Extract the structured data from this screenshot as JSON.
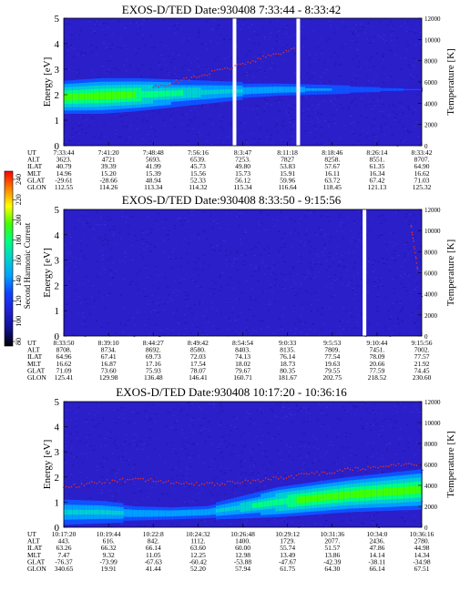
{
  "colorbar": {
    "label": "Second Harmonic Current",
    "ticks": [
      "240",
      "220",
      "200",
      "180",
      "160",
      "140",
      "120",
      "100",
      "80"
    ],
    "colors": [
      "#ff0000",
      "#ff8000",
      "#ffff00",
      "#40ff00",
      "#00ff80",
      "#00d0d0",
      "#00a0ff",
      "#1040ff",
      "#2020d0",
      "#101090",
      "#000000"
    ]
  },
  "panels": [
    {
      "title": "EXOS-D/TED   Date:930408   7:33:44 - 8:33:42",
      "ylabel": "Energy [eV]",
      "y2label": "Temperature [K]",
      "ylim": [
        0,
        5
      ],
      "y2lim": [
        0,
        12000
      ],
      "yticks": [
        "0",
        "1",
        "2",
        "3",
        "4",
        "5"
      ],
      "y2ticks": [
        "0",
        "2000",
        "4000",
        "6000",
        "8000",
        "10000",
        "12000"
      ],
      "rows": [
        {
          "label": "UT",
          "values": [
            "7:33:44",
            "7:41:20",
            "7:48:48",
            "7:56:16",
            "8:3:47",
            "8:11:18",
            "8:18:46",
            "8:26:14",
            "8:33:42"
          ]
        },
        {
          "label": "ALT",
          "values": [
            "3623.",
            "4721",
            "5693.",
            "6539.",
            "7253.",
            "7827",
            "8258.",
            "8551.",
            "8707."
          ]
        },
        {
          "label": "ILAT",
          "values": [
            "40.79",
            "39.39",
            "41.99",
            "45.73",
            "49.80",
            "53.83",
            "57.67",
            "61.35",
            "64.90"
          ]
        },
        {
          "label": "MLT",
          "values": [
            "14.96",
            "15.20",
            "15.39",
            "15.56",
            "15.73",
            "15.91",
            "16.11",
            "16.34",
            "16.62"
          ]
        },
        {
          "label": "GLAT",
          "values": [
            "-29.61",
            "-28.66",
            "48.94",
            "52.33",
            "56.12",
            "59.96",
            "63.72",
            "67.42",
            "71.03"
          ]
        },
        {
          "label": "GLON",
          "values": [
            "112.55",
            "114.26",
            "113.34",
            "114.32",
            "115.34",
            "116.64",
            "118.45",
            "121.13",
            "125.32"
          ]
        }
      ],
      "chart_data": {
        "type": "heatmap",
        "title": "EXOS-D/TED   Date:930408   7:33:44 - 8:33:42",
        "ylabel": "Energy [eV]",
        "y2label": "Temperature [K]",
        "x": [
          "7:33:44",
          "7:41:20",
          "7:48:48",
          "7:56:16",
          "8:3:47",
          "8:11:18",
          "8:18:46",
          "8:26:14",
          "8:33:42"
        ],
        "ylim": [
          0,
          5
        ],
        "y2lim": [
          0,
          12000
        ],
        "intensity_band": [
          {
            "x": 0.0,
            "center": 1.9,
            "width": 0.65,
            "level": 0.95
          },
          {
            "x": 0.1,
            "center": 1.95,
            "width": 0.7,
            "level": 1.0
          },
          {
            "x": 0.2,
            "center": 2.0,
            "width": 0.65,
            "level": 0.9
          },
          {
            "x": 0.3,
            "center": 2.05,
            "width": 0.55,
            "level": 0.75
          },
          {
            "x": 0.4,
            "center": 2.1,
            "width": 0.45,
            "level": 0.6
          },
          {
            "x": 0.5,
            "center": 2.15,
            "width": 0.35,
            "level": 0.5
          },
          {
            "x": 0.6,
            "center": 2.2,
            "width": 0.3,
            "level": 0.45
          },
          {
            "x": 0.7,
            "center": 2.2,
            "width": 0.25,
            "level": 0.35
          },
          {
            "x": 0.8,
            "center": 2.2,
            "width": 0.2,
            "level": 0.25
          },
          {
            "x": 0.9,
            "center": 2.2,
            "width": 0.15,
            "level": 0.15
          },
          {
            "x": 1.0,
            "center": 2.2,
            "width": 0.1,
            "level": 0.1
          }
        ],
        "temperature": [
          {
            "x": 0.25,
            "T": 5500
          },
          {
            "x": 0.35,
            "T": 6300
          },
          {
            "x": 0.45,
            "T": 7200
          },
          {
            "x": 0.55,
            "T": 8200
          },
          {
            "x": 0.65,
            "T": 9200
          }
        ],
        "gaps": [
          0.477,
          0.655
        ]
      }
    },
    {
      "title": "EXOS-D/TED   Date:930408   8:33:50 - 9:15:56",
      "ylabel": "Energy [eV]",
      "y2label": "Temperature [K]",
      "ylim": [
        0,
        5
      ],
      "y2lim": [
        0,
        12000
      ],
      "yticks": [
        "0",
        "1",
        "2",
        "3",
        "4",
        "5"
      ],
      "y2ticks": [
        "0",
        "2000",
        "4000",
        "6000",
        "8000",
        "10000",
        "12000"
      ],
      "rows": [
        {
          "label": "UT",
          "values": [
            "8:33:50",
            "8:39:10",
            "8:44:27",
            "8:49:42",
            "8:54:54",
            "9:0:33",
            "9:5:53",
            "9:10:44",
            "9:15:56"
          ]
        },
        {
          "label": "ALT",
          "values": [
            "8708.",
            "8734.",
            "8692.",
            "8580.",
            "8403.",
            "8135.",
            "7809.",
            "7451.",
            "7002."
          ]
        },
        {
          "label": "ILAT",
          "values": [
            "64.96",
            "67.41",
            "69.73",
            "72.03",
            "74.13",
            "76.14",
            "77.54",
            "78.09",
            "77.57"
          ]
        },
        {
          "label": "MLT",
          "values": [
            "16.62",
            "16.87",
            "17.16",
            "17.54",
            "18.02",
            "18.73",
            "19.63",
            "20.66",
            "21.92"
          ]
        },
        {
          "label": "GLAT",
          "values": [
            "71.09",
            "73.60",
            "75.93",
            "78.07",
            "79.67",
            "80.35",
            "79.55",
            "77.59",
            "74.45"
          ]
        },
        {
          "label": "GLON",
          "values": [
            "125.41",
            "129.98",
            "136.48",
            "146.41",
            "160.71",
            "181.67",
            "202.75",
            "218.52",
            "230.60"
          ]
        }
      ],
      "chart_data": {
        "type": "heatmap",
        "title": "EXOS-D/TED   Date:930408   8:33:50 - 9:15:56",
        "ylabel": "Energy [eV]",
        "y2label": "Temperature [K]",
        "x": [
          "8:33:50",
          "8:39:10",
          "8:44:27",
          "8:49:42",
          "8:54:54",
          "9:0:33",
          "9:5:53",
          "9:10:44",
          "9:15:56"
        ],
        "ylim": [
          0,
          5
        ],
        "y2lim": [
          0,
          12000
        ],
        "intensity_band": [],
        "temperature": [
          {
            "x": 0.97,
            "T": 10500
          },
          {
            "x": 0.99,
            "T": 6000
          }
        ],
        "gaps": [
          0.84
        ]
      }
    },
    {
      "title": "EXOS-D/TED   Date:930408   10:17:20 - 10:36:16",
      "ylabel": "Energy [eV]",
      "y2label": "Temperature [K]",
      "ylim": [
        0,
        5
      ],
      "y2lim": [
        0,
        12000
      ],
      "yticks": [
        "0",
        "1",
        "2",
        "3",
        "4",
        "5"
      ],
      "y2ticks": [
        "0",
        "2000",
        "4000",
        "6000",
        "8000",
        "10000",
        "12000"
      ],
      "rows": [
        {
          "label": "UT",
          "values": [
            "10:17:20",
            "10:19:44",
            "10:22:8",
            "10:24:32",
            "10:26:48",
            "10:29:12",
            "10:31:36",
            "10:34:0",
            "10:36:16"
          ]
        },
        {
          "label": "ALT",
          "values": [
            "443.",
            "616.",
            "842.",
            "1112.",
            "1400.",
            "1729.",
            "2077.",
            "2436.",
            "2780."
          ]
        },
        {
          "label": "ILAT",
          "values": [
            "63.26",
            "66.32",
            "66.14",
            "63.60",
            "60.00",
            "55.74",
            "51.57",
            "47.86",
            "44.98"
          ]
        },
        {
          "label": "MLT",
          "values": [
            "7.47",
            "9.32",
            "11.05",
            "12.25",
            "12.98",
            "13.49",
            "13.86",
            "14.14",
            "14.34"
          ]
        },
        {
          "label": "GLAT",
          "values": [
            "-76.37",
            "-73.99",
            "-67.63",
            "-60.42",
            "-53.88",
            "-47.67",
            "-42.39",
            "-38.11",
            "-34.98"
          ]
        },
        {
          "label": "GLON",
          "values": [
            "340.65",
            "19.91",
            "41.44",
            "52.20",
            "57.94",
            "61.75",
            "64.30",
            "66.14",
            "67.51"
          ]
        }
      ],
      "chart_data": {
        "type": "heatmap",
        "title": "EXOS-D/TED   Date:930408   10:17:20 - 10:36:16",
        "ylabel": "Energy [eV]",
        "y2label": "Temperature [K]",
        "x": [
          "10:17:20",
          "10:19:44",
          "10:22:8",
          "10:24:32",
          "10:26:48",
          "10:29:12",
          "10:31:36",
          "10:34:0",
          "10:36:16"
        ],
        "ylim": [
          0,
          5
        ],
        "y2lim": [
          0,
          12000
        ],
        "intensity_band": [
          {
            "x": 0.0,
            "center": 0.6,
            "width": 0.5,
            "level": 0.55
          },
          {
            "x": 0.1,
            "center": 0.6,
            "width": 0.45,
            "level": 0.6
          },
          {
            "x": 0.2,
            "center": 0.55,
            "width": 0.35,
            "level": 0.45
          },
          {
            "x": 0.3,
            "center": 0.55,
            "width": 0.3,
            "level": 0.4
          },
          {
            "x": 0.4,
            "center": 0.6,
            "width": 0.3,
            "level": 0.45
          },
          {
            "x": 0.5,
            "center": 0.8,
            "width": 0.45,
            "level": 0.65
          },
          {
            "x": 0.6,
            "center": 1.0,
            "width": 0.6,
            "level": 0.85
          },
          {
            "x": 0.7,
            "center": 1.15,
            "width": 0.65,
            "level": 0.95
          },
          {
            "x": 0.8,
            "center": 1.3,
            "width": 0.7,
            "level": 1.0
          },
          {
            "x": 0.9,
            "center": 1.4,
            "width": 0.75,
            "level": 0.95
          },
          {
            "x": 1.0,
            "center": 1.5,
            "width": 0.8,
            "level": 0.9
          }
        ],
        "temperature": [
          {
            "x": 0.0,
            "T": 3800
          },
          {
            "x": 0.1,
            "T": 4300
          },
          {
            "x": 0.2,
            "T": 4600
          },
          {
            "x": 0.3,
            "T": 4300
          },
          {
            "x": 0.4,
            "T": 4100
          },
          {
            "x": 0.5,
            "T": 4300
          },
          {
            "x": 0.6,
            "T": 4700
          },
          {
            "x": 0.7,
            "T": 5100
          },
          {
            "x": 0.8,
            "T": 5500
          },
          {
            "x": 0.9,
            "T": 5800
          },
          {
            "x": 1.0,
            "T": 6100
          }
        ],
        "gaps": []
      }
    }
  ]
}
